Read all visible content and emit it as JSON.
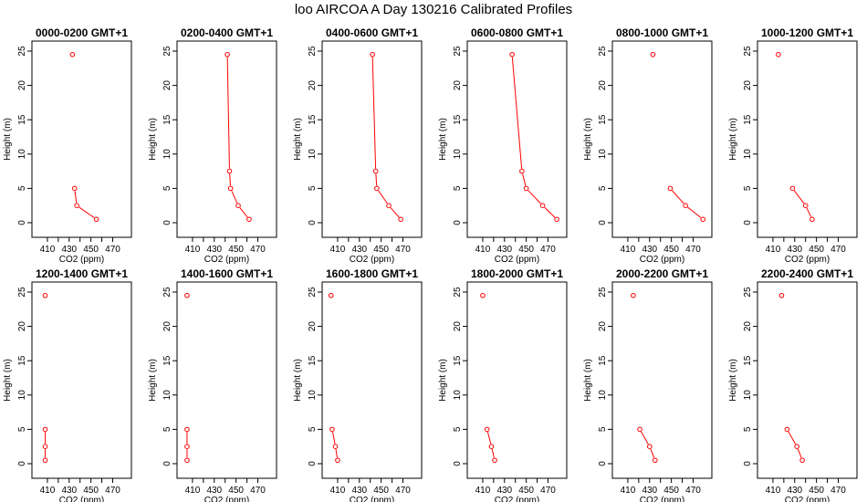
{
  "title": "loo AIRCOA A  Day 130216  Calibrated Profiles",
  "chart_data": {
    "type": "line",
    "xlabel": "CO2 (ppm)",
    "ylabel": "Height (m)",
    "xlim": [
      400,
      483
    ],
    "ylim": [
      0,
      25
    ],
    "xticks": [
      410,
      430,
      450,
      470
    ],
    "yticks": [
      0,
      5,
      10,
      15,
      20,
      25
    ],
    "heights": [
      24.5,
      7.5,
      5,
      2.5,
      0.5
    ],
    "series_color": "#ff0000",
    "panels": [
      {
        "title": "0000-0200 GMT+1",
        "co2": [
          433,
          null,
          435,
          437,
          455
        ]
      },
      {
        "title": "0200-0400 GMT+1",
        "co2": [
          442,
          444,
          445,
          452,
          462
        ]
      },
      {
        "title": "0400-0600 GMT+1",
        "co2": [
          442,
          445,
          446,
          457,
          468
        ]
      },
      {
        "title": "0600-0800 GMT+1",
        "co2": [
          437,
          446,
          450,
          465,
          478
        ]
      },
      {
        "title": "0800-1000 GMT+1",
        "co2": [
          433,
          null,
          449,
          463,
          479
        ]
      },
      {
        "title": "1000-1200 GMT+1",
        "co2": [
          415,
          null,
          428,
          440,
          446
        ]
      },
      {
        "title": "1200-1400 GMT+1",
        "co2": [
          408,
          null,
          408,
          408,
          408
        ]
      },
      {
        "title": "1400-1600 GMT+1",
        "co2": [
          405,
          null,
          405,
          405,
          405
        ]
      },
      {
        "title": "1600-1800 GMT+1",
        "co2": [
          404,
          null,
          405,
          408,
          410
        ]
      },
      {
        "title": "1800-2000 GMT+1",
        "co2": [
          410,
          null,
          414,
          418,
          421
        ]
      },
      {
        "title": "2000-2200 GMT+1",
        "co2": [
          415,
          null,
          421,
          430,
          435
        ]
      },
      {
        "title": "2200-2400 GMT+1",
        "co2": [
          418,
          null,
          423,
          432,
          437
        ]
      }
    ]
  }
}
